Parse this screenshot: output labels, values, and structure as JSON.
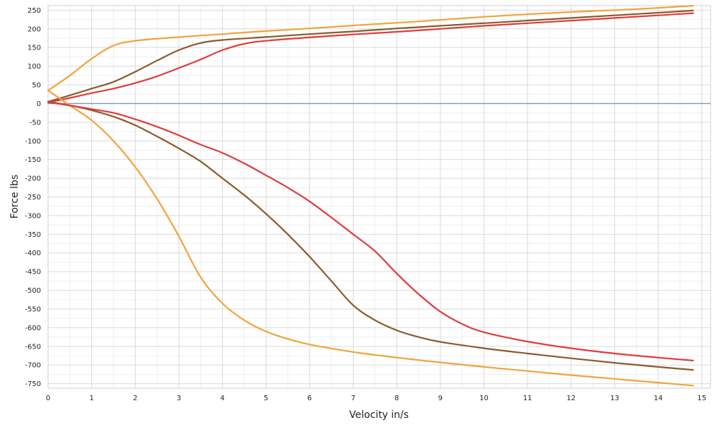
{
  "chart_data": {
    "type": "line",
    "title": "",
    "xlabel": "Velocity in/s",
    "ylabel": "Force lbs",
    "xlim": [
      0,
      15.2
    ],
    "ylim": [
      -762,
      262
    ],
    "xticks": [
      0,
      1,
      2,
      3,
      4,
      5,
      6,
      7,
      8,
      9,
      10,
      11,
      12,
      13,
      14,
      15
    ],
    "yticks": [
      250,
      200,
      150,
      100,
      50,
      0,
      -50,
      -100,
      -150,
      -200,
      -250,
      -300,
      -350,
      -400,
      -450,
      -500,
      -550,
      -600,
      -650,
      -700,
      -750
    ],
    "grid": true,
    "legend": "none",
    "zero_line_color": "#7f96b8",
    "series": [
      {
        "color": "#f2a33a",
        "points": [
          [
            0,
            35
          ],
          [
            0.5,
            75
          ],
          [
            1,
            120
          ],
          [
            1.5,
            155
          ],
          [
            2,
            168
          ],
          [
            3,
            178
          ],
          [
            4,
            186
          ],
          [
            5,
            194
          ],
          [
            6,
            201
          ],
          [
            7,
            209
          ],
          [
            8,
            216
          ],
          [
            9,
            224
          ],
          [
            10,
            232
          ],
          [
            11,
            239
          ],
          [
            12,
            245
          ],
          [
            13,
            250
          ],
          [
            14,
            256
          ],
          [
            14.8,
            262
          ]
        ]
      },
      {
        "color": "#8b5a2b",
        "points": [
          [
            0,
            5
          ],
          [
            0.5,
            22
          ],
          [
            1,
            40
          ],
          [
            1.5,
            58
          ],
          [
            2,
            85
          ],
          [
            2.5,
            115
          ],
          [
            3,
            143
          ],
          [
            3.5,
            162
          ],
          [
            4,
            170
          ],
          [
            5,
            178
          ],
          [
            6,
            186
          ],
          [
            7,
            193
          ],
          [
            8,
            201
          ],
          [
            9,
            208
          ],
          [
            10,
            215
          ],
          [
            11,
            222
          ],
          [
            12,
            229
          ],
          [
            13,
            236
          ],
          [
            14,
            243
          ],
          [
            14.8,
            249
          ]
        ]
      },
      {
        "color": "#e23a3a",
        "points": [
          [
            0,
            3
          ],
          [
            0.5,
            15
          ],
          [
            1,
            28
          ],
          [
            1.5,
            40
          ],
          [
            2,
            55
          ],
          [
            2.5,
            73
          ],
          [
            3,
            95
          ],
          [
            3.5,
            118
          ],
          [
            4,
            143
          ],
          [
            4.5,
            160
          ],
          [
            5,
            168
          ],
          [
            6,
            177
          ],
          [
            7,
            185
          ],
          [
            8,
            192
          ],
          [
            9,
            200
          ],
          [
            10,
            208
          ],
          [
            11,
            215
          ],
          [
            12,
            222
          ],
          [
            13,
            229
          ],
          [
            14,
            236
          ],
          [
            14.8,
            242
          ]
        ]
      },
      {
        "color": "#f2a33a",
        "points": [
          [
            0,
            35
          ],
          [
            0.5,
            -5
          ],
          [
            1,
            -45
          ],
          [
            1.5,
            -100
          ],
          [
            2,
            -170
          ],
          [
            2.5,
            -255
          ],
          [
            3,
            -355
          ],
          [
            3.5,
            -465
          ],
          [
            4,
            -535
          ],
          [
            4.5,
            -580
          ],
          [
            5,
            -610
          ],
          [
            5.5,
            -630
          ],
          [
            6,
            -645
          ],
          [
            7,
            -665
          ],
          [
            8,
            -680
          ],
          [
            9,
            -693
          ],
          [
            10,
            -705
          ],
          [
            11,
            -716
          ],
          [
            12,
            -727
          ],
          [
            13,
            -737
          ],
          [
            14,
            -747
          ],
          [
            14.8,
            -755
          ]
        ]
      },
      {
        "color": "#8b5a2b",
        "points": [
          [
            0,
            5
          ],
          [
            0.5,
            -5
          ],
          [
            1,
            -18
          ],
          [
            1.5,
            -35
          ],
          [
            2,
            -58
          ],
          [
            2.5,
            -88
          ],
          [
            3,
            -120
          ],
          [
            3.5,
            -155
          ],
          [
            4,
            -200
          ],
          [
            4.5,
            -245
          ],
          [
            5,
            -295
          ],
          [
            5.5,
            -350
          ],
          [
            6,
            -410
          ],
          [
            6.5,
            -475
          ],
          [
            7,
            -540
          ],
          [
            7.5,
            -580
          ],
          [
            8,
            -607
          ],
          [
            8.5,
            -625
          ],
          [
            9,
            -638
          ],
          [
            10,
            -655
          ],
          [
            11,
            -669
          ],
          [
            12,
            -682
          ],
          [
            13,
            -694
          ],
          [
            14,
            -705
          ],
          [
            14.8,
            -713
          ]
        ]
      },
      {
        "color": "#e23a3a",
        "points": [
          [
            0,
            3
          ],
          [
            0.5,
            -5
          ],
          [
            1,
            -15
          ],
          [
            1.5,
            -25
          ],
          [
            2,
            -42
          ],
          [
            2.5,
            -62
          ],
          [
            3,
            -85
          ],
          [
            3.5,
            -110
          ],
          [
            4,
            -132
          ],
          [
            4.5,
            -160
          ],
          [
            5,
            -192
          ],
          [
            5.5,
            -225
          ],
          [
            6,
            -262
          ],
          [
            6.5,
            -305
          ],
          [
            7,
            -350
          ],
          [
            7.5,
            -395
          ],
          [
            8,
            -455
          ],
          [
            8.5,
            -510
          ],
          [
            9,
            -557
          ],
          [
            9.5,
            -590
          ],
          [
            10,
            -612
          ],
          [
            11,
            -637
          ],
          [
            12,
            -655
          ],
          [
            13,
            -669
          ],
          [
            14,
            -680
          ],
          [
            14.8,
            -688
          ]
        ]
      }
    ]
  }
}
